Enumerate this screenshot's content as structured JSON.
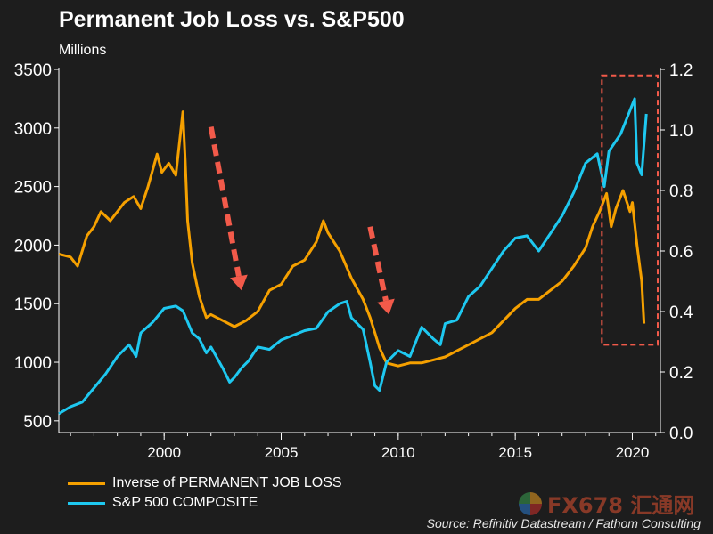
{
  "title": "Permanent Job Loss vs. S&P500",
  "subtitle": "Millions",
  "source": "Source: Refinitiv Datastream / Fathom Consulting",
  "watermark": "FX678 汇通网",
  "colors": {
    "background": "#1d1d1d",
    "job_loss": "#f5a000",
    "sp500": "#1ec8f0",
    "arrow": "#f25a4a",
    "highlight_box": "#f25a4a",
    "axis": "#ffffff"
  },
  "chart_data": {
    "type": "line",
    "title": "Permanent Job Loss vs. S&P500",
    "xlim": [
      1995.5,
      2021.2
    ],
    "x_ticks": [
      2000,
      2005,
      2010,
      2015,
      2020
    ],
    "left_axis": {
      "label": "",
      "ylim": [
        400,
        3500
      ],
      "ticks": [
        500,
        1000,
        1500,
        2000,
        2500,
        3000,
        3500
      ]
    },
    "right_axis": {
      "label": "Millions",
      "ylim": [
        0.0,
        1.2
      ],
      "ticks": [
        "0.0",
        "0.2",
        "0.4",
        "0.6",
        "0.8",
        "1.0",
        "1.2"
      ]
    },
    "series": [
      {
        "name": "Inverse of PERMANENT JOB LOSS",
        "axis": "right",
        "color": "#f5a000",
        "x": [
          1995.5,
          1996.0,
          1996.3,
          1996.7,
          1997.0,
          1997.3,
          1997.7,
          1998.0,
          1998.3,
          1998.7,
          1999.0,
          1999.3,
          1999.7,
          1999.9,
          2000.2,
          2000.5,
          2000.8,
          2000.9,
          2001.0,
          2001.2,
          2001.5,
          2001.8,
          2002.0,
          2002.5,
          2003.0,
          2003.5,
          2004.0,
          2004.5,
          2005.0,
          2005.5,
          2006.0,
          2006.5,
          2006.8,
          2007.0,
          2007.5,
          2008.0,
          2008.5,
          2008.8,
          2009.0,
          2009.2,
          2009.5,
          2010.0,
          2010.5,
          2011.0,
          2011.5,
          2012.0,
          2012.5,
          2013.0,
          2013.5,
          2014.0,
          2014.5,
          2015.0,
          2015.5,
          2016.0,
          2016.5,
          2017.0,
          2017.5,
          2018.0,
          2018.3,
          2018.6,
          2018.9,
          2019.1,
          2019.3,
          2019.6,
          2019.9,
          2020.0,
          2020.2,
          2020.4,
          2020.5
        ],
        "values": [
          0.59,
          0.58,
          0.55,
          0.65,
          0.68,
          0.73,
          0.7,
          0.73,
          0.76,
          0.78,
          0.74,
          0.81,
          0.92,
          0.86,
          0.89,
          0.85,
          1.06,
          0.9,
          0.7,
          0.56,
          0.45,
          0.38,
          0.39,
          0.37,
          0.35,
          0.37,
          0.4,
          0.47,
          0.49,
          0.55,
          0.57,
          0.63,
          0.7,
          0.66,
          0.6,
          0.51,
          0.44,
          0.38,
          0.33,
          0.28,
          0.23,
          0.22,
          0.23,
          0.23,
          0.24,
          0.25,
          0.27,
          0.29,
          0.31,
          0.33,
          0.37,
          0.41,
          0.44,
          0.44,
          0.47,
          0.5,
          0.55,
          0.61,
          0.68,
          0.73,
          0.79,
          0.68,
          0.74,
          0.8,
          0.73,
          0.76,
          0.62,
          0.5,
          0.36
        ]
      },
      {
        "name": "S&P 500 COMPOSITE",
        "axis": "left",
        "color": "#1ec8f0",
        "x": [
          1995.5,
          1996.0,
          1996.5,
          1997.0,
          1997.5,
          1998.0,
          1998.5,
          1998.8,
          1999.0,
          1999.5,
          2000.0,
          2000.5,
          2000.8,
          2001.2,
          2001.5,
          2001.8,
          2002.0,
          2002.5,
          2002.8,
          2003.0,
          2003.3,
          2003.6,
          2004.0,
          2004.5,
          2005.0,
          2005.5,
          2006.0,
          2006.5,
          2007.0,
          2007.5,
          2007.8,
          2008.0,
          2008.5,
          2008.8,
          2009.0,
          2009.2,
          2009.5,
          2010.0,
          2010.5,
          2011.0,
          2011.5,
          2011.8,
          2012.0,
          2012.5,
          2013.0,
          2013.5,
          2014.0,
          2014.5,
          2015.0,
          2015.5,
          2016.0,
          2016.5,
          2017.0,
          2017.5,
          2018.0,
          2018.5,
          2018.8,
          2019.0,
          2019.5,
          2019.9,
          2020.1,
          2020.2,
          2020.4,
          2020.6
        ],
        "values": [
          560,
          620,
          660,
          780,
          900,
          1050,
          1150,
          1050,
          1250,
          1340,
          1460,
          1480,
          1440,
          1250,
          1200,
          1080,
          1130,
          950,
          830,
          870,
          950,
          1010,
          1130,
          1110,
          1190,
          1230,
          1270,
          1290,
          1430,
          1500,
          1520,
          1380,
          1280,
          1000,
          800,
          760,
          1000,
          1100,
          1050,
          1300,
          1200,
          1150,
          1330,
          1360,
          1560,
          1650,
          1800,
          1950,
          2060,
          2080,
          1950,
          2100,
          2250,
          2450,
          2700,
          2780,
          2500,
          2800,
          2950,
          3150,
          3250,
          2700,
          2600,
          3120
        ]
      }
    ],
    "annotations": [
      {
        "type": "arrow",
        "from": {
          "x": 2002.0,
          "y": 1.01
        },
        "to": {
          "x": 2003.3,
          "y": 0.47
        },
        "axis": "right",
        "style": "dashed"
      },
      {
        "type": "arrow",
        "from": {
          "x": 2008.8,
          "y": 0.68
        },
        "to": {
          "x": 2009.6,
          "y": 0.39
        },
        "axis": "right",
        "style": "dashed"
      },
      {
        "type": "box",
        "x_range": [
          2018.7,
          2021.2
        ],
        "y_range": [
          0.29,
          1.18
        ],
        "axis": "right",
        "style": "dashed"
      }
    ]
  },
  "legend": [
    {
      "label": "Inverse of PERMANENT JOB LOSS",
      "color": "#f5a000"
    },
    {
      "label": "S&P 500 COMPOSITE",
      "color": "#1ec8f0"
    }
  ]
}
